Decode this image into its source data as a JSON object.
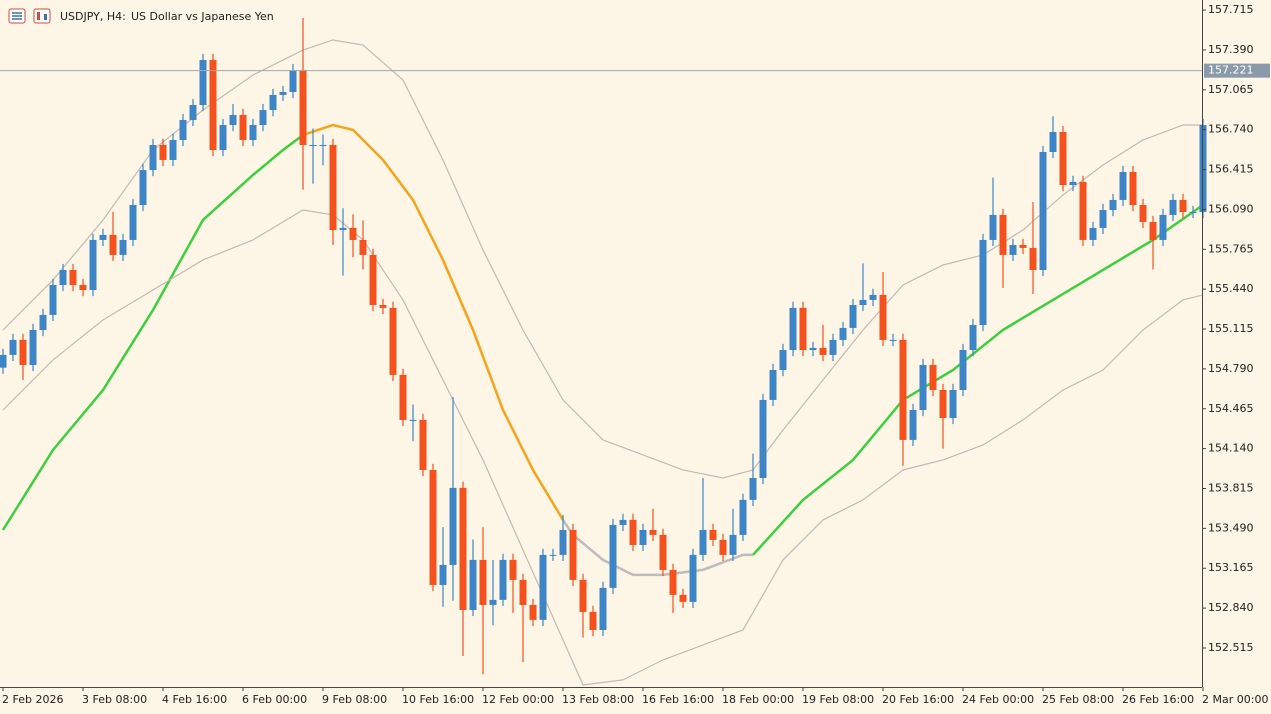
{
  "chart_data": {
    "type": "candlestick",
    "symbol": "USDJPY, H4:",
    "title": "US Dollar vs Japanese Yen",
    "categories": [
      "2 Feb 2026",
      null,
      null,
      null,
      null,
      null,
      null,
      null,
      "3 Feb 08:00",
      null,
      null,
      null,
      null,
      null,
      null,
      null,
      "4 Feb 16:00",
      null,
      null,
      null,
      null,
      null,
      null,
      null,
      "6 Feb 00:00",
      null,
      null,
      null,
      null,
      null,
      null,
      null,
      "9 Feb 08:00",
      null,
      null,
      null,
      null,
      null,
      null,
      null,
      "10 Feb 16:00",
      null,
      null,
      null,
      null,
      null,
      null,
      null,
      "12 Feb 00:00",
      null,
      null,
      null,
      null,
      null,
      null,
      null,
      "13 Feb 08:00",
      null,
      null,
      null,
      null,
      null,
      null,
      null,
      "16 Feb 16:00",
      null,
      null,
      null,
      null,
      null,
      null,
      null,
      "18 Feb 00:00",
      null,
      null,
      null,
      null,
      null,
      null,
      null,
      "19 Feb 08:00",
      null,
      null,
      null,
      null,
      null,
      null,
      null,
      "20 Feb 16:00",
      null,
      null,
      null,
      null,
      null,
      null,
      null,
      "24 Feb 00:00",
      null,
      null,
      null,
      null,
      null,
      null,
      null,
      "25 Feb 08:00",
      null,
      null,
      null,
      null,
      null,
      null,
      null,
      "26 Feb 16:00",
      null,
      null,
      null,
      null,
      null,
      null,
      null,
      "2 Mar 00:00"
    ],
    "open": [
      154.8,
      154.904,
      155.026,
      154.822,
      155.107,
      155.23,
      155.474,
      155.596,
      155.474,
      155.433,
      155.841,
      155.882,
      155.719,
      155.841,
      156.126,
      156.411,
      156.615,
      156.493,
      156.656,
      156.819,
      156.941,
      157.308,
      156.574,
      156.778,
      156.86,
      156.656,
      156.778,
      156.9,
      157.023,
      157.047,
      157.226,
      156.615,
      156.615,
      156.615,
      155.922,
      155.939,
      155.841,
      155.719,
      155.311,
      155.287,
      154.741,
      154.374,
      154.374,
      153.966,
      153.029,
      153.192,
      153.82,
      152.825,
      153.233,
      152.866,
      152.907,
      153.233,
      153.07,
      152.866,
      152.744,
      153.274,
      153.274,
      153.477,
      153.07,
      152.809,
      152.662,
      153.005,
      153.518,
      153.559,
      153.355,
      153.477,
      153.437,
      153.151,
      152.948,
      152.891,
      153.274,
      153.477,
      153.396,
      153.274,
      153.437,
      153.722,
      153.901,
      154.537,
      154.781,
      154.944,
      155.287,
      154.944,
      154.961,
      154.904,
      155.026,
      155.124,
      155.311,
      155.352,
      155.393,
      155.026,
      155.026,
      154.211,
      154.455,
      154.822,
      154.618,
      154.39,
      154.618,
      154.944,
      155.148,
      155.841,
      156.045,
      155.719,
      155.8,
      155.776,
      155.596,
      156.558,
      156.721,
      156.289,
      156.314,
      155.841,
      155.939,
      156.085,
      156.167,
      156.395,
      156.126,
      155.988,
      155.841,
      156.045,
      156.167,
      156.069,
      156.069
    ],
    "high": [
      154.954,
      155.076,
      155.076,
      155.157,
      155.28,
      155.524,
      155.646,
      155.646,
      155.524,
      155.891,
      155.932,
      156.07,
      155.891,
      156.176,
      156.461,
      156.665,
      156.665,
      156.706,
      156.869,
      156.991,
      157.358,
      157.358,
      156.828,
      156.95,
      156.91,
      156.828,
      156.95,
      157.073,
      157.097,
      157.276,
      157.65,
      156.75,
      156.7,
      156.665,
      156.1,
      156.05,
      156.0,
      155.769,
      155.361,
      155.337,
      154.791,
      154.5,
      154.424,
      154.016,
      153.5,
      154.56,
      153.87,
      153.4,
      153.5,
      153.233,
      153.283,
      153.283,
      153.12,
      152.916,
      153.324,
      153.324,
      153.6,
      153.527,
      153.12,
      152.859,
      153.055,
      153.568,
      153.609,
      153.609,
      153.527,
      153.65,
      153.487,
      153.201,
      152.998,
      153.324,
      153.9,
      153.527,
      153.446,
      153.65,
      153.772,
      154.1,
      154.587,
      154.831,
      154.994,
      155.337,
      155.337,
      155.011,
      155.15,
      155.076,
      155.174,
      155.361,
      155.65,
      155.443,
      155.58,
      155.076,
      155.076,
      154.505,
      154.872,
      154.872,
      154.668,
      154.668,
      154.994,
      155.198,
      155.891,
      156.35,
      156.095,
      155.85,
      155.85,
      156.15,
      156.608,
      156.85,
      156.771,
      156.364,
      156.364,
      155.989,
      156.135,
      156.217,
      156.445,
      156.445,
      156.176,
      156.038,
      156.095,
      156.217,
      156.217,
      156.119,
      156.828
    ],
    "low": [
      154.75,
      154.854,
      154.7,
      154.772,
      155.057,
      155.18,
      155.424,
      155.424,
      155.383,
      155.383,
      155.791,
      155.669,
      155.669,
      155.791,
      156.076,
      156.361,
      156.443,
      156.443,
      156.606,
      156.769,
      156.891,
      156.524,
      156.524,
      156.728,
      156.606,
      156.606,
      156.728,
      156.85,
      156.973,
      156.997,
      156.25,
      156.3,
      156.45,
      155.8,
      155.55,
      155.7,
      155.6,
      155.261,
      155.237,
      154.691,
      154.324,
      154.2,
      153.916,
      152.979,
      152.85,
      152.9,
      152.45,
      152.775,
      152.3,
      152.7,
      152.857,
      152.8,
      152.4,
      152.694,
      152.694,
      153.224,
      153.224,
      153.02,
      152.6,
      152.612,
      152.612,
      152.955,
      153.468,
      153.305,
      153.305,
      153.387,
      153.101,
      152.8,
      152.841,
      152.841,
      153.224,
      153.346,
      153.224,
      153.224,
      153.387,
      153.672,
      153.851,
      154.487,
      154.731,
      154.894,
      154.894,
      154.894,
      154.854,
      154.854,
      154.976,
      155.074,
      155.261,
      155.302,
      154.976,
      154.976,
      154.0,
      154.161,
      154.405,
      154.568,
      154.14,
      154.34,
      154.568,
      154.894,
      155.098,
      155.791,
      155.45,
      155.669,
      155.726,
      155.4,
      155.546,
      156.508,
      156.239,
      156.239,
      155.791,
      155.791,
      155.889,
      156.035,
      156.117,
      156.076,
      155.938,
      155.6,
      155.791,
      155.995,
      156.019,
      156.019,
      156.019
    ],
    "close": [
      154.904,
      155.026,
      154.822,
      155.107,
      155.23,
      155.474,
      155.596,
      155.474,
      155.433,
      155.841,
      155.882,
      155.719,
      155.841,
      156.126,
      156.411,
      156.615,
      156.493,
      156.656,
      156.819,
      156.941,
      157.308,
      156.574,
      156.778,
      156.86,
      156.656,
      156.778,
      156.9,
      157.023,
      157.047,
      157.226,
      156.615,
      156.615,
      156.615,
      155.922,
      155.939,
      155.841,
      155.719,
      155.311,
      155.287,
      154.741,
      154.374,
      154.374,
      153.966,
      153.029,
      153.192,
      153.82,
      152.825,
      153.233,
      152.866,
      152.907,
      153.233,
      153.07,
      152.866,
      152.744,
      153.274,
      153.274,
      153.477,
      153.07,
      152.809,
      152.662,
      153.005,
      153.518,
      153.559,
      153.355,
      153.477,
      153.437,
      153.151,
      152.948,
      152.891,
      153.274,
      153.477,
      153.396,
      153.274,
      153.437,
      153.722,
      153.901,
      154.537,
      154.781,
      154.944,
      155.287,
      154.944,
      154.961,
      154.904,
      155.026,
      155.124,
      155.311,
      155.352,
      155.393,
      155.026,
      155.026,
      154.211,
      154.455,
      154.822,
      154.618,
      154.39,
      154.618,
      154.944,
      155.148,
      155.841,
      156.045,
      155.719,
      155.8,
      155.776,
      155.596,
      156.558,
      156.721,
      156.289,
      156.314,
      155.841,
      155.939,
      156.085,
      156.167,
      156.395,
      156.126,
      155.988,
      155.841,
      156.045,
      156.167,
      156.069,
      156.069,
      156.778
    ],
    "up_color": "#3d85c6",
    "down_color": "#f4511e",
    "series": [
      {
        "color": "#3ecf3e",
        "x": [
          0,
          5,
          10,
          15,
          20,
          25,
          28,
          30
        ],
        "values": [
          153.477,
          154.129,
          154.618,
          155.27,
          156.004,
          156.371,
          156.574,
          156.697
        ]
      },
      {
        "color": "#f5a31a",
        "x": [
          30,
          33,
          35,
          38,
          41,
          44,
          47,
          50,
          53,
          56
        ],
        "values": [
          156.697,
          156.778,
          156.738,
          156.493,
          156.167,
          155.678,
          155.108,
          154.455,
          153.966,
          153.559
        ]
      },
      {
        "color": "#bdbdbd",
        "x": [
          56,
          57,
          60,
          63,
          66,
          70,
          74,
          75
        ],
        "values": [
          153.559,
          153.437,
          153.233,
          153.111,
          153.111,
          153.152,
          153.274,
          153.274
        ]
      },
      {
        "color": "#3ecf3e",
        "x": [
          75,
          80,
          85,
          90,
          95,
          100,
          105,
          110,
          115,
          120
        ],
        "values": [
          153.274,
          153.722,
          154.048,
          154.537,
          154.781,
          155.108,
          155.352,
          155.597,
          155.841,
          156.126
        ]
      },
      {
        "color": "#c4b9b4",
        "x": [
          0,
          5,
          10,
          15,
          20,
          25,
          30,
          33,
          36,
          40,
          44,
          48,
          52,
          56,
          60,
          64,
          68,
          72,
          75,
          78,
          82,
          86,
          90,
          94,
          98,
          102,
          106,
          110,
          114,
          118,
          120
        ],
        "values": [
          155.107,
          155.515,
          156.004,
          156.574,
          156.9,
          157.186,
          157.389,
          157.471,
          157.43,
          157.145,
          156.493,
          155.759,
          155.107,
          154.537,
          154.211,
          154.089,
          153.966,
          153.901,
          153.966,
          154.292,
          154.7,
          155.107,
          155.474,
          155.637,
          155.719,
          155.922,
          156.208,
          156.452,
          156.656,
          156.778,
          156.778
        ]
      },
      {
        "color": "#c4b9b4",
        "x": [
          0,
          5,
          10,
          15,
          20,
          25,
          30,
          33,
          36,
          40,
          44,
          48,
          52,
          56,
          58,
          62,
          66,
          70,
          74,
          78,
          82,
          86,
          90,
          94,
          98,
          102,
          106,
          110,
          114,
          118,
          120
        ],
        "values": [
          154.455,
          154.863,
          155.189,
          155.433,
          155.678,
          155.841,
          156.085,
          156.045,
          155.841,
          155.352,
          154.7,
          154.048,
          153.314,
          152.581,
          152.214,
          152.255,
          152.418,
          152.54,
          152.662,
          153.233,
          153.559,
          153.722,
          153.966,
          154.048,
          154.17,
          154.374,
          154.618,
          154.781,
          155.107,
          155.352,
          155.393
        ]
      }
    ],
    "price_line": 157.221,
    "ylim": [
      152.197,
      157.797
    ],
    "yticks": [
      {
        "value": 152.515,
        "label": "152.515"
      },
      {
        "value": 152.84,
        "label": "152.840"
      },
      {
        "value": 153.165,
        "label": "153.165"
      },
      {
        "value": 153.49,
        "label": "153.490"
      },
      {
        "value": 153.815,
        "label": "153.815"
      },
      {
        "value": 154.14,
        "label": "154.140"
      },
      {
        "value": 154.465,
        "label": "154.465"
      },
      {
        "value": 154.79,
        "label": "154.790"
      },
      {
        "value": 155.115,
        "label": "155.115"
      },
      {
        "value": 155.44,
        "label": "155.440"
      },
      {
        "value": 155.765,
        "label": "155.765"
      },
      {
        "value": 156.09,
        "label": "156.090"
      },
      {
        "value": 156.415,
        "label": "156.415"
      },
      {
        "value": 156.74,
        "label": "156.740"
      },
      {
        "value": 157.065,
        "label": "157.065"
      },
      {
        "value": 157.39,
        "label": "157.390"
      },
      {
        "value": 157.715,
        "label": "157.715"
      }
    ]
  }
}
